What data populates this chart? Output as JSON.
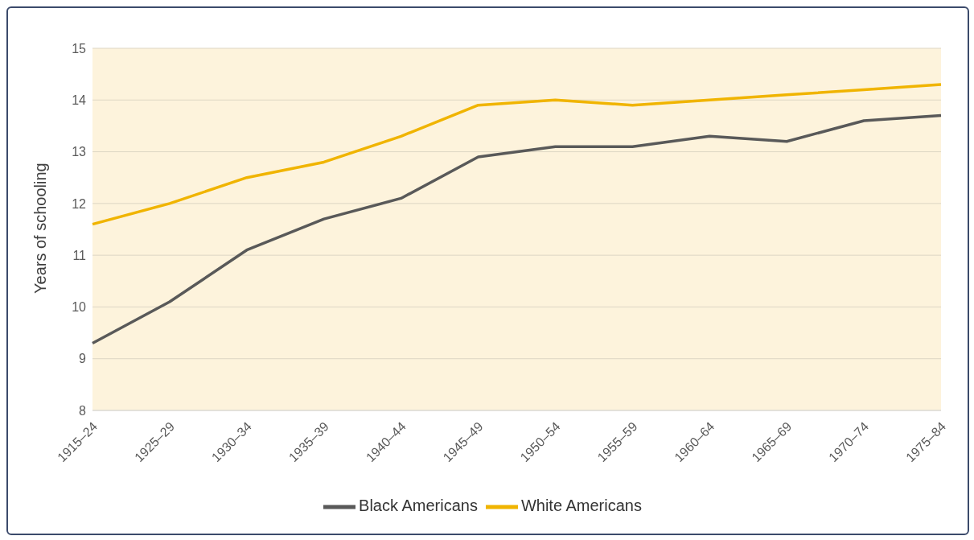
{
  "chart_data": {
    "type": "line",
    "ylabel": "Years of schooling",
    "categories": [
      "1915–24",
      "1925–29",
      "1930–34",
      "1935–39",
      "1940–44",
      "1945–49",
      "1950–54",
      "1955–59",
      "1960–64",
      "1965–69",
      "1970–74",
      "1975–84"
    ],
    "series": [
      {
        "name": "Black Americans",
        "color": "#595959",
        "values": [
          9.3,
          10.1,
          11.1,
          11.7,
          12.1,
          12.9,
          13.1,
          13.1,
          13.3,
          13.2,
          13.6,
          13.7
        ]
      },
      {
        "name": "White Americans",
        "color": "#f0b400",
        "values": [
          11.6,
          12.0,
          12.5,
          12.8,
          13.3,
          13.9,
          14.0,
          13.9,
          14.0,
          14.1,
          14.2,
          14.3
        ]
      }
    ],
    "ylim": [
      8,
      15
    ],
    "yticks": [
      8,
      9,
      10,
      11,
      12,
      13,
      14,
      15
    ],
    "grid": "y",
    "legend": "bottom",
    "marker": "none",
    "line_style": "solid"
  }
}
